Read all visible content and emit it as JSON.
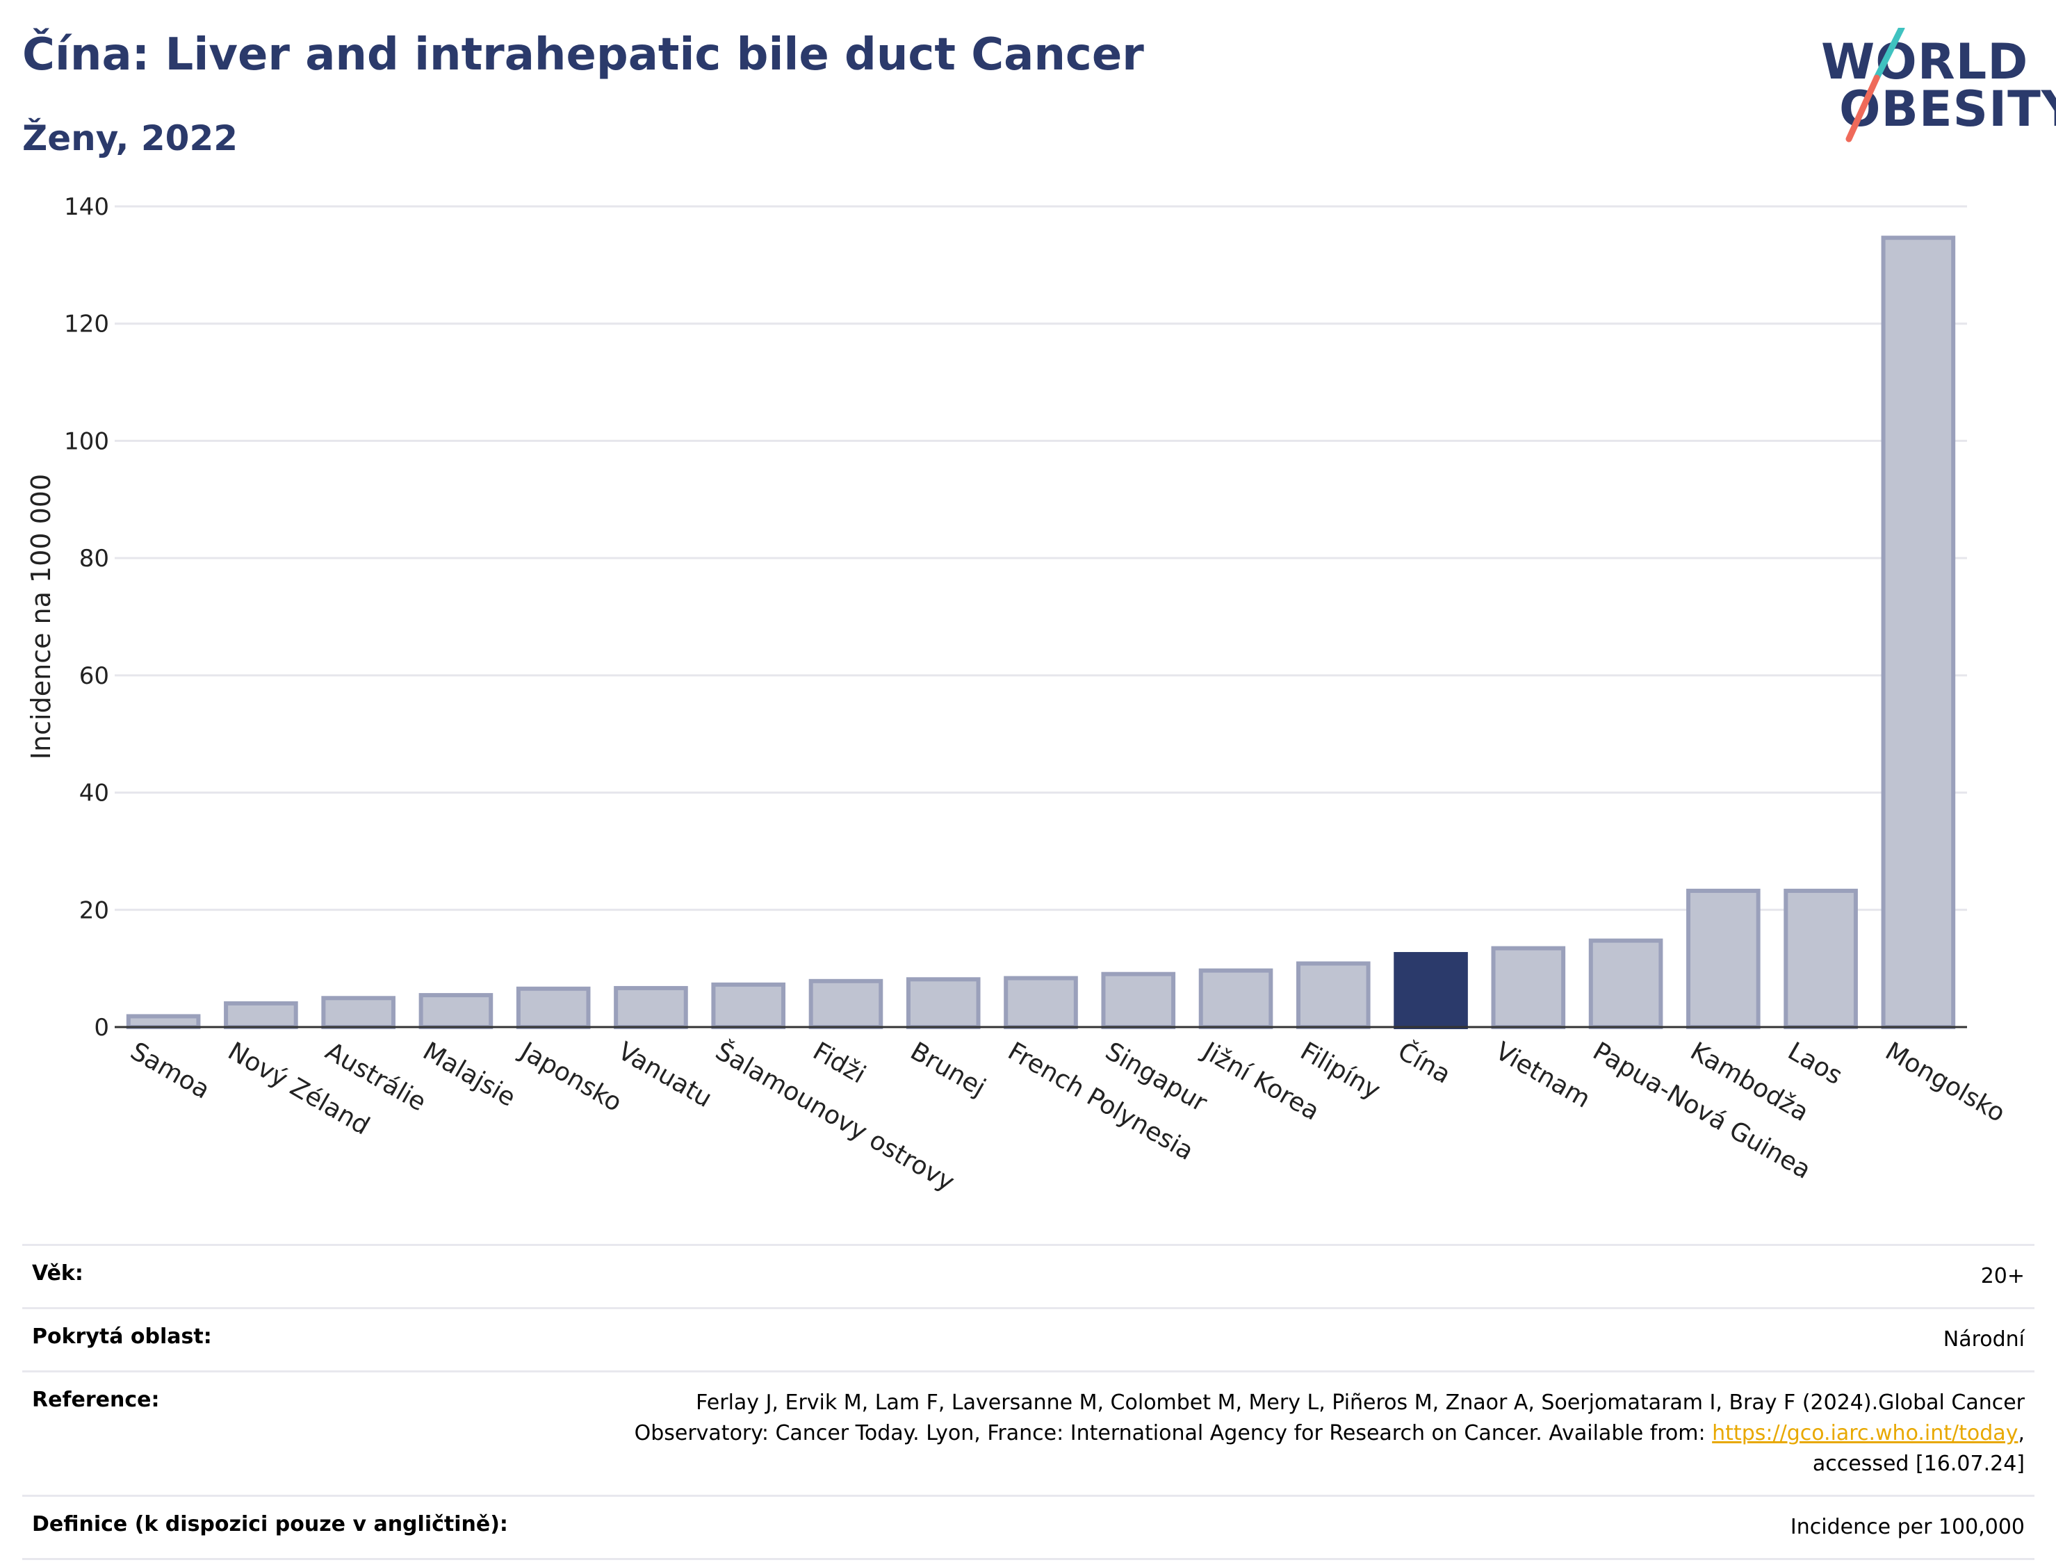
{
  "header": {
    "title": "Čína: Liver and intrahepatic bile duct Cancer",
    "subtitle": "Ženy, 2022"
  },
  "logo": {
    "line1": "WORLD",
    "line2": "OBESITY",
    "slash_colors": [
      "#3fc2c0",
      "#ef6a5a"
    ]
  },
  "chart_data": {
    "type": "bar",
    "ylabel": "Incidence na 100 000",
    "xlabel": "",
    "ylim": [
      0,
      140
    ],
    "yticks": [
      0,
      20,
      40,
      60,
      80,
      100,
      120,
      140
    ],
    "grid": true,
    "categories": [
      "Samoa",
      "Nový Zéland",
      "Austrálie",
      "Malajsie",
      "Japonsko",
      "Vanuatu",
      "Šalamounovy ostrovy",
      "Fidži",
      "Brunej",
      "French Polynesia",
      "Singapur",
      "Jižní Korea",
      "Filipíny",
      "Čína",
      "Vietnam",
      "Papua-Nová Guinea",
      "Kambodža",
      "Laos",
      "Mongolsko"
    ],
    "values": [
      2.2,
      4.4,
      5.3,
      5.8,
      6.9,
      7.0,
      7.6,
      8.2,
      8.5,
      8.7,
      9.4,
      10.0,
      11.2,
      12.8,
      13.8,
      15.1,
      23.6,
      23.6,
      135.0
    ],
    "highlight": "Čína",
    "colors": {
      "bar": "#bfc3d1",
      "bar_border": "#9aa0bb",
      "highlight": "#2b3a6b"
    }
  },
  "info": {
    "age_label": "Věk:",
    "age_value": "20+",
    "coverage_label": "Pokrytá oblast:",
    "coverage_value": "Národní",
    "reference_label": "Reference:",
    "reference_text_1": "Ferlay J, Ervik M, Lam F, Laversanne M, Colombet M, Mery L, Piñeros M, Znaor A, Soerjomataram I, Bray F (2024).Global Cancer Observatory: Cancer Today. Lyon, France: International Agency for Research on Cancer. Available from: ",
    "reference_link": "https://gco.iarc.who.int/today",
    "reference_text_2": ", accessed [16.07.24]",
    "definition_label": "Definice (k dispozici pouze v angličtině):",
    "definition_value": "Incidence per 100,000"
  }
}
